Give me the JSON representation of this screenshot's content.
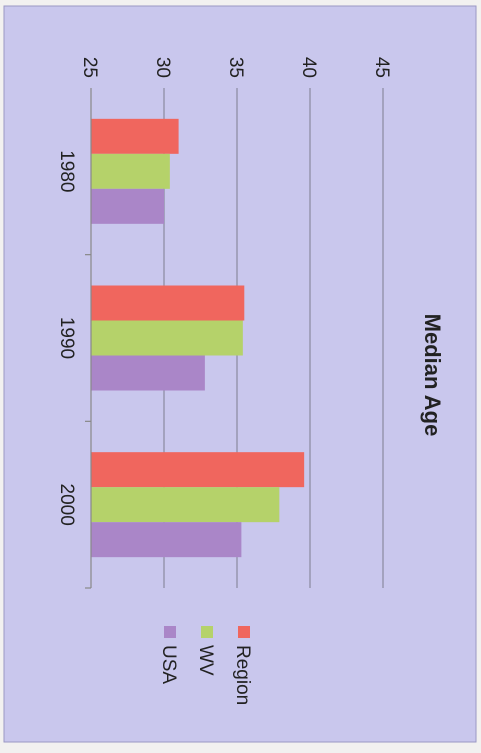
{
  "chart_data": {
    "type": "bar",
    "orientation": "horizontal",
    "title": "Median Age",
    "xlabel": "",
    "ylabel": "",
    "categories": [
      "1980",
      "1990",
      "2000"
    ],
    "series": [
      {
        "name": "Region",
        "color": "#f0665e",
        "values": [
          31.0,
          35.5,
          39.6
        ]
      },
      {
        "name": "WV",
        "color": "#b5d26a",
        "values": [
          30.4,
          35.4,
          37.9
        ]
      },
      {
        "name": "USA",
        "color": "#aa86c8",
        "values": [
          30.0,
          32.8,
          35.3
        ]
      }
    ],
    "value_axis": {
      "min": 25,
      "max": 45,
      "ticks": [
        "25",
        "30",
        "35",
        "40",
        "45"
      ]
    },
    "grid": true,
    "legend": "right",
    "background": "#c9c7ed"
  }
}
